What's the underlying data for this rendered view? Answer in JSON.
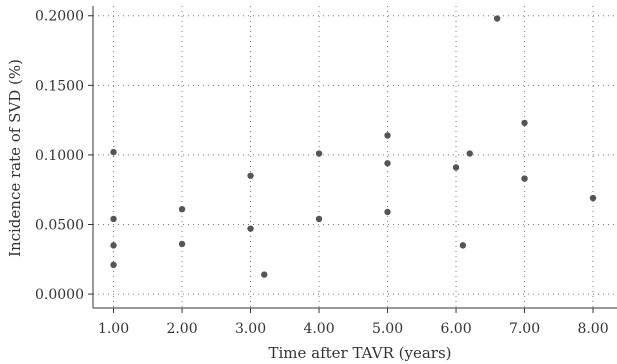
{
  "chart_data": {
    "type": "scatter",
    "xlabel": "Time after TAVR (years)",
    "ylabel": "Incidence rate of SVD (%)",
    "xlim": [
      0.7,
      8.35
    ],
    "ylim": [
      -0.01,
      0.207
    ],
    "x_ticks": [
      1,
      2,
      3,
      4,
      5,
      6,
      7,
      8
    ],
    "x_tick_labels": [
      "1.00",
      "2.00",
      "3.00",
      "4.00",
      "5.00",
      "6.00",
      "7.00",
      "8.00"
    ],
    "y_ticks": [
      0,
      0.05,
      0.1,
      0.15,
      0.2
    ],
    "y_tick_labels": [
      "0.0000",
      "0.0500",
      "0.1000",
      "0.1500",
      "0.2000"
    ],
    "grid": true,
    "point_color": "#555555",
    "points": [
      {
        "x": 1.0,
        "y": 0.102
      },
      {
        "x": 1.0,
        "y": 0.054
      },
      {
        "x": 1.0,
        "y": 0.035
      },
      {
        "x": 1.0,
        "y": 0.021
      },
      {
        "x": 2.0,
        "y": 0.061
      },
      {
        "x": 2.0,
        "y": 0.036
      },
      {
        "x": 3.0,
        "y": 0.085
      },
      {
        "x": 3.0,
        "y": 0.047
      },
      {
        "x": 3.2,
        "y": 0.014
      },
      {
        "x": 4.0,
        "y": 0.101
      },
      {
        "x": 4.0,
        "y": 0.054
      },
      {
        "x": 5.0,
        "y": 0.114
      },
      {
        "x": 5.0,
        "y": 0.094
      },
      {
        "x": 5.0,
        "y": 0.059
      },
      {
        "x": 6.0,
        "y": 0.091
      },
      {
        "x": 6.1,
        "y": 0.035
      },
      {
        "x": 6.2,
        "y": 0.101
      },
      {
        "x": 6.6,
        "y": 0.198
      },
      {
        "x": 7.0,
        "y": 0.123
      },
      {
        "x": 7.0,
        "y": 0.083
      },
      {
        "x": 8.0,
        "y": 0.069
      }
    ]
  }
}
